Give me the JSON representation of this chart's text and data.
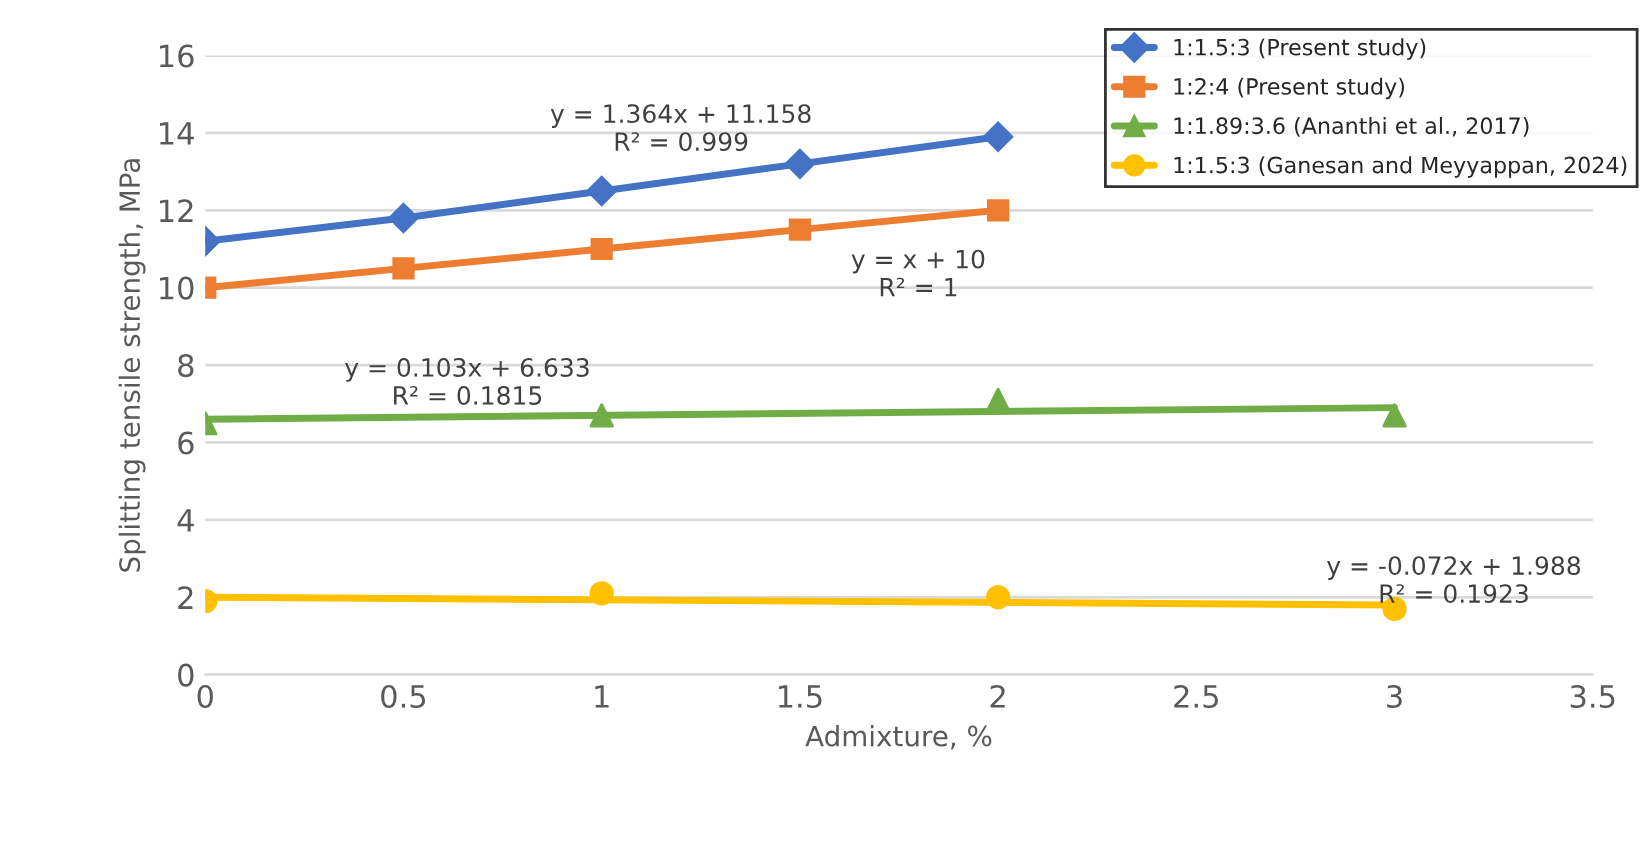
{
  "chart_data": {
    "type": "line",
    "xlabel": "Admixture, %",
    "ylabel": "Splitting tensile strength, MPa",
    "xlim": [
      0,
      3.5
    ],
    "xticks": [
      0,
      0.5,
      1,
      1.5,
      2,
      2.5,
      3,
      3.5
    ],
    "ylim": [
      0,
      16
    ],
    "yticks": [
      0,
      2,
      4,
      6,
      8,
      10,
      12,
      14,
      16
    ],
    "grid": "y",
    "legend": "top right",
    "series": [
      {
        "name": "1:1.5:3 (Present study)",
        "color": "#4472c4",
        "marker": "diamond",
        "x": [
          0,
          0.5,
          1,
          1.5,
          2
        ],
        "values": [
          11.2,
          11.8,
          12.5,
          13.2,
          13.9
        ]
      },
      {
        "name": "1:2:4 (Present study)",
        "color": "#ed7d31",
        "marker": "square",
        "x": [
          0,
          0.5,
          1,
          1.5,
          2
        ],
        "values": [
          10,
          10.5,
          11,
          11.5,
          12
        ]
      },
      {
        "name": "1:1.89:3.6 (Ananthi et al., 2017)",
        "type": "scatter",
        "color": "#70ad47",
        "marker": "triangle",
        "x": [
          0,
          1,
          2,
          3
        ],
        "values": [
          6.5,
          6.7,
          7.1,
          6.7
        ]
      },
      {
        "name": "1:1.5:3 (Ganesan and Meyyappan, 2024)",
        "type": "scatter",
        "color": "#ffc000",
        "marker": "circle",
        "x": [
          0,
          1,
          2,
          3
        ],
        "values": [
          1.9,
          2.1,
          2.0,
          1.7
        ]
      },
      {
        "type": "line",
        "color": "#70ad47",
        "marker": "none",
        "x": [
          0,
          3
        ],
        "values": [
          6.6,
          6.9
        ]
      },
      {
        "type": "line",
        "color": "#ffc000",
        "marker": "none",
        "x": [
          0,
          3
        ],
        "values": [
          2.0,
          1.8
        ]
      }
    ],
    "annotations": [
      "y = 1.364x + 11.158\nR² = 0.999",
      "y = x + 10\nR² = 1",
      "y = 0.103x + 6.633\nR² = 0.1815",
      "y = -0.072x + 1.988\nR² = 0.1923"
    ]
  }
}
